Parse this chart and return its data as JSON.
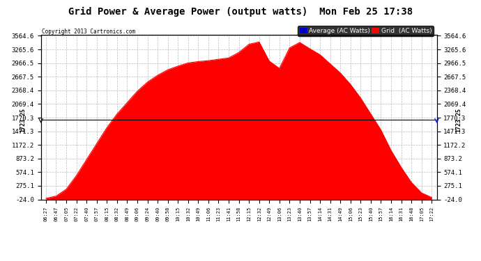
{
  "title": "Grid Power & Average Power (output watts)  Mon Feb 25 17:38",
  "copyright": "Copyright 2013 Cartronics.com",
  "average_line": 1723.25,
  "ymin": -24.0,
  "ymax": 3564.6,
  "yticks": [
    3564.6,
    3265.6,
    2966.5,
    2667.5,
    2368.4,
    2069.4,
    1770.3,
    1471.3,
    1172.2,
    873.2,
    574.1,
    275.1,
    -24.0
  ],
  "bg_color": "#ffffff",
  "grid_color": "#bbbbbb",
  "fill_color": "#ff0000",
  "avg_line_color": "#000000",
  "legend_avg_bg": "#0000cc",
  "legend_grid_bg": "#ff0000",
  "xtick_labels": [
    "06:27",
    "06:47",
    "07:05",
    "07:22",
    "07:40",
    "07:57",
    "08:15",
    "08:32",
    "08:49",
    "09:06",
    "09:24",
    "09:40",
    "09:58",
    "10:15",
    "10:32",
    "10:49",
    "11:06",
    "11:23",
    "11:41",
    "11:58",
    "12:15",
    "12:32",
    "12:49",
    "13:06",
    "13:23",
    "13:40",
    "13:57",
    "14:14",
    "14:31",
    "14:49",
    "15:06",
    "15:23",
    "15:40",
    "15:57",
    "16:14",
    "16:31",
    "16:48",
    "17:05",
    "17:22"
  ],
  "data_y": [
    0,
    50,
    200,
    500,
    850,
    1200,
    1550,
    1850,
    2100,
    2350,
    2550,
    2700,
    2820,
    2900,
    2970,
    3000,
    3020,
    3050,
    3080,
    3200,
    3380,
    3430,
    3010,
    2850,
    3300,
    3420,
    3280,
    3150,
    2950,
    2750,
    2500,
    2200,
    1850,
    1500,
    1050,
    680,
    350,
    120,
    20
  ]
}
